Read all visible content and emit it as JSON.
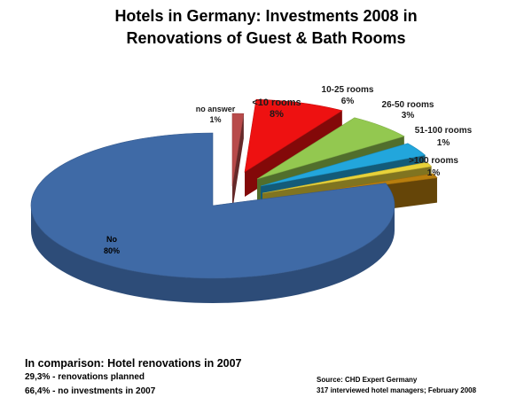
{
  "title": {
    "line1": "Hotels in Germany: Investments 2008 in",
    "line2": "Renovations of Guest & Bath Rooms"
  },
  "chart_data": {
    "type": "pie",
    "title": "Hotels in Germany: Investments 2008 in Renovations of Guest & Bath Rooms",
    "slices": [
      {
        "label": "No",
        "value_label": "80%",
        "value": 80,
        "color": "#3f6aa6"
      },
      {
        "label": "no answer",
        "value_label": "1%",
        "value": 1,
        "color": "#b84a4a"
      },
      {
        "label": "<10 rooms",
        "value_label": "8%",
        "value": 8,
        "color": "#ee1111"
      },
      {
        "label": "10-25 rooms",
        "value_label": "6%",
        "value": 6,
        "color": "#93c850"
      },
      {
        "label": "26-50 rooms",
        "value_label": "3%",
        "value": 3,
        "color": "#22a6dc"
      },
      {
        "label": "51-100 rooms",
        "value_label": "1%",
        "value": 1,
        "color": "#e8d23a"
      },
      {
        "label": ">100 rooms",
        "value_label": "1%",
        "value": 1,
        "color": "#b87e0e"
      }
    ],
    "style": "3d-exploded-pie"
  },
  "comparison": {
    "title": "In comparison: Hotel renovations in 2007",
    "line1": "29,3% - renovations planned",
    "line2": "66,4% - no investments in 2007"
  },
  "source": {
    "line1": "Source: CHD Expert Germany",
    "line2": "317 interviewed hotel managers; February 2008"
  }
}
